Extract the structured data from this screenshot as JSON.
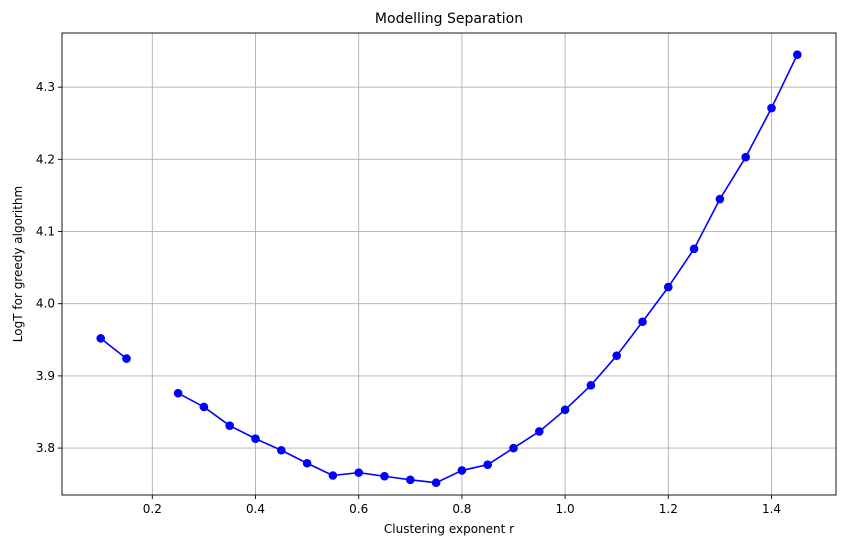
{
  "chart_data": {
    "type": "line",
    "title": "Modelling Separation",
    "xlabel": "Clustering exponent r",
    "ylabel": "LogT for greedy algorithm",
    "xlim": [
      0.025,
      1.525
    ],
    "ylim": [
      3.735,
      4.375
    ],
    "grid": true,
    "x_ticks": [
      0.2,
      0.4,
      0.6,
      0.8,
      1.0,
      1.2,
      1.4
    ],
    "x_tick_labels": [
      "0.2",
      "0.4",
      "0.6",
      "0.8",
      "1.0",
      "1.2",
      "1.4"
    ],
    "y_ticks": [
      3.8,
      3.9,
      4.0,
      4.1,
      4.2,
      4.3
    ],
    "y_tick_labels": [
      "3.8",
      "3.9",
      "4.0",
      "4.1",
      "4.2",
      "4.3"
    ],
    "series": [
      {
        "color": "#0000ff",
        "marker": "circle",
        "x": [
          0.1,
          0.15,
          0.2,
          0.25,
          0.3,
          0.35,
          0.4,
          0.45,
          0.5,
          0.55,
          0.6,
          0.65,
          0.7,
          0.75,
          0.8,
          0.85,
          0.9,
          0.95,
          1.0,
          1.05,
          1.1,
          1.15,
          1.2,
          1.25,
          1.3,
          1.35,
          1.4,
          1.45
        ],
        "y": [
          3.952,
          3.924,
          null,
          3.876,
          3.857,
          3.831,
          3.813,
          3.797,
          3.779,
          3.762,
          3.766,
          3.761,
          3.756,
          3.752,
          3.769,
          3.777,
          3.8,
          3.823,
          3.853,
          3.887,
          3.928,
          3.975,
          4.023,
          4.076,
          4.145,
          4.203,
          4.271,
          4.345
        ]
      }
    ]
  }
}
